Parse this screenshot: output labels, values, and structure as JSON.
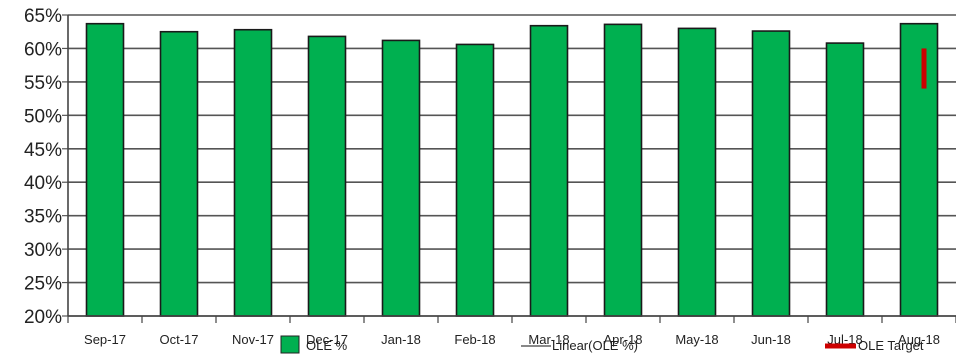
{
  "chart_data": {
    "type": "bar",
    "categories": [
      "Sep-17",
      "Oct-17",
      "Nov-17",
      "Dec-17",
      "Jan-18",
      "Feb-18",
      "Mar-18",
      "Apr-18",
      "May-18",
      "Jun-18",
      "Jul-18",
      "Aug-18"
    ],
    "series": [
      {
        "name": "OLE %",
        "values": [
          63.7,
          62.5,
          62.8,
          61.8,
          61.2,
          60.6,
          63.4,
          63.6,
          63.0,
          62.6,
          60.8,
          63.7
        ],
        "color": "#00b050"
      }
    ],
    "trendline": {
      "name": "Linear(OLE %)",
      "color": "#888888"
    },
    "target": {
      "name": "OLE Target",
      "color": "#cc0000",
      "category": "Aug-18",
      "low": 54,
      "high": 60
    },
    "y_ticks": [
      "20%",
      "25%",
      "30%",
      "35%",
      "40%",
      "45%",
      "50%",
      "55%",
      "60%",
      "65%"
    ],
    "ylim": [
      20,
      65
    ],
    "grid": true,
    "legend_position": "bottom"
  }
}
